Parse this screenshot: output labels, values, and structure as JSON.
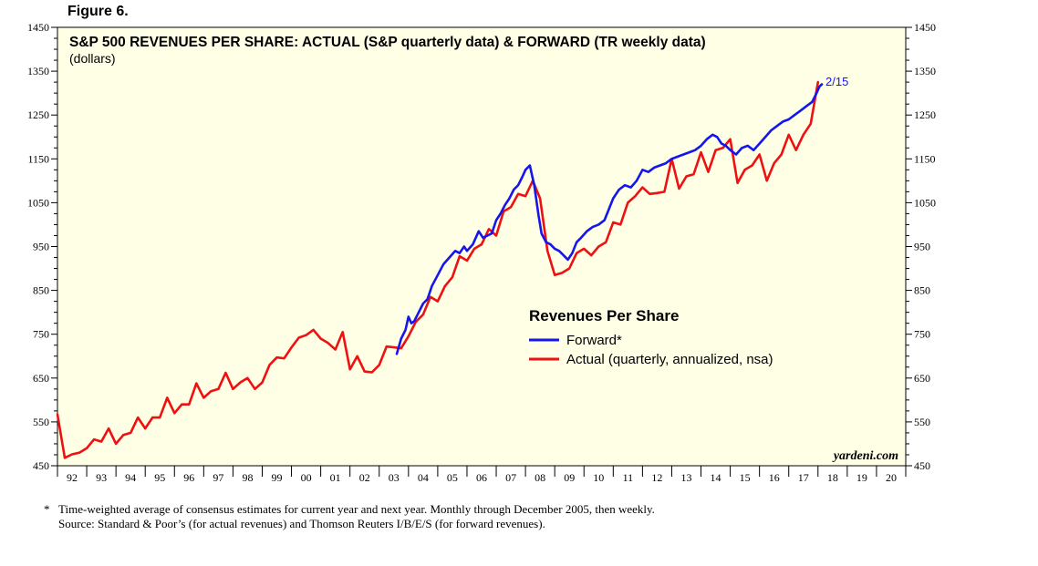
{
  "figure_label": "Figure 6.",
  "watermark": "yardeni.com",
  "footnote": {
    "line1": "*   Time-weighted average of consensus estimates for current year and next year. Monthly through December 2005, then weekly.",
    "line2": "Source: Standard & Poor’s (for actual revenues) and Thomson Reuters I/B/E/S (for forward revenues)."
  },
  "chart_data": {
    "type": "line",
    "title": "S&P 500 REVENUES PER SHARE: ACTUAL (S&P quarterly data) & FORWARD (TR weekly data)",
    "subtitle": "(dollars)",
    "legend_title": "Revenues Per Share",
    "ylim": [
      450,
      1450
    ],
    "y_ticks": [
      450,
      550,
      650,
      750,
      850,
      950,
      1050,
      1150,
      1250,
      1350,
      1450
    ],
    "x_range": [
      1992,
      2021
    ],
    "x_tick_labels": [
      "92",
      "93",
      "94",
      "95",
      "96",
      "97",
      "98",
      "99",
      "00",
      "01",
      "02",
      "03",
      "04",
      "05",
      "06",
      "07",
      "08",
      "09",
      "10",
      "11",
      "12",
      "13",
      "14",
      "15",
      "16",
      "17",
      "18",
      "19",
      "20"
    ],
    "grid": false,
    "legend_position": "center-right",
    "end_annotation": "2/15",
    "colors": {
      "background": "#ffffe6",
      "forward": "#1515ee",
      "actual": "#ee1111"
    },
    "series": [
      {
        "name": "Actual (quarterly, annualized, nsa)",
        "x": [
          1992.0,
          1992.25,
          1992.5,
          1992.75,
          1993.0,
          1993.25,
          1993.5,
          1993.75,
          1994.0,
          1994.25,
          1994.5,
          1994.75,
          1995.0,
          1995.25,
          1995.5,
          1995.75,
          1996.0,
          1996.25,
          1996.5,
          1996.75,
          1997.0,
          1997.25,
          1997.5,
          1997.75,
          1998.0,
          1998.25,
          1998.5,
          1998.75,
          1999.0,
          1999.25,
          1999.5,
          1999.75,
          2000.0,
          2000.25,
          2000.5,
          2000.75,
          2001.0,
          2001.25,
          2001.5,
          2001.75,
          2002.0,
          2002.25,
          2002.5,
          2002.75,
          2003.0,
          2003.25,
          2003.5,
          2003.75,
          2004.0,
          2004.25,
          2004.5,
          2004.75,
          2005.0,
          2005.25,
          2005.5,
          2005.75,
          2006.0,
          2006.25,
          2006.5,
          2006.75,
          2007.0,
          2007.25,
          2007.5,
          2007.75,
          2008.0,
          2008.25,
          2008.5,
          2008.75,
          2009.0,
          2009.25,
          2009.5,
          2009.75,
          2010.0,
          2010.25,
          2010.5,
          2010.75,
          2011.0,
          2011.25,
          2011.5,
          2011.75,
          2012.0,
          2012.25,
          2012.5,
          2012.75,
          2013.0,
          2013.25,
          2013.5,
          2013.75,
          2014.0,
          2014.25,
          2014.5,
          2014.75,
          2015.0,
          2015.25,
          2015.5,
          2015.75,
          2016.0,
          2016.25,
          2016.5,
          2016.75,
          2017.0,
          2017.25,
          2017.5,
          2017.75,
          2018.0
        ],
        "values": [
          567,
          468,
          476,
          480,
          490,
          510,
          505,
          535,
          500,
          520,
          525,
          560,
          535,
          560,
          560,
          605,
          570,
          590,
          590,
          638,
          605,
          620,
          625,
          662,
          625,
          640,
          650,
          625,
          640,
          680,
          697,
          695,
          720,
          742,
          748,
          760,
          740,
          730,
          715,
          755,
          670,
          700,
          665,
          663,
          680,
          722,
          720,
          718,
          745,
          778,
          795,
          835,
          825,
          860,
          880,
          928,
          918,
          945,
          955,
          990,
          975,
          1030,
          1040,
          1070,
          1065,
          1100,
          1060,
          940,
          885,
          890,
          900,
          935,
          945,
          930,
          950,
          960,
          1005,
          1000,
          1050,
          1065,
          1085,
          1070,
          1072,
          1075,
          1150,
          1082,
          1110,
          1115,
          1165,
          1120,
          1170,
          1175,
          1195,
          1095,
          1125,
          1135,
          1160,
          1100,
          1140,
          1160,
          1205,
          1170,
          1205,
          1230,
          1325
        ]
      },
      {
        "name": "Forward*",
        "x": [
          2003.6,
          2003.75,
          2003.9,
          2004.0,
          2004.1,
          2004.2,
          2004.35,
          2004.5,
          2004.65,
          2004.8,
          2005.0,
          2005.2,
          2005.4,
          2005.6,
          2005.75,
          2005.9,
          2006.0,
          2006.2,
          2006.4,
          2006.55,
          2006.7,
          2006.85,
          2007.0,
          2007.15,
          2007.3,
          2007.45,
          2007.6,
          2007.75,
          2007.9,
          2008.0,
          2008.15,
          2008.3,
          2008.45,
          2008.55,
          2008.7,
          2008.85,
          2009.0,
          2009.15,
          2009.3,
          2009.45,
          2009.6,
          2009.75,
          2009.9,
          2010.1,
          2010.3,
          2010.5,
          2010.7,
          2010.85,
          2011.0,
          2011.2,
          2011.4,
          2011.6,
          2011.8,
          2012.0,
          2012.2,
          2012.4,
          2012.6,
          2012.8,
          2013.0,
          2013.2,
          2013.4,
          2013.6,
          2013.8,
          2014.0,
          2014.2,
          2014.4,
          2014.55,
          2014.7,
          2014.85,
          2015.0,
          2015.2,
          2015.4,
          2015.6,
          2015.8,
          2016.0,
          2016.2,
          2016.4,
          2016.6,
          2016.8,
          2017.0,
          2017.2,
          2017.4,
          2017.6,
          2017.8,
          2017.95,
          2018.05,
          2018.13
        ],
        "values": [
          705,
          740,
          760,
          790,
          775,
          780,
          800,
          820,
          830,
          860,
          885,
          910,
          925,
          940,
          935,
          950,
          940,
          955,
          985,
          970,
          975,
          980,
          1010,
          1025,
          1045,
          1060,
          1080,
          1090,
          1110,
          1125,
          1135,
          1090,
          1020,
          980,
          960,
          955,
          945,
          940,
          930,
          920,
          935,
          960,
          970,
          985,
          995,
          1000,
          1010,
          1035,
          1060,
          1080,
          1090,
          1085,
          1100,
          1125,
          1120,
          1130,
          1135,
          1140,
          1150,
          1155,
          1160,
          1165,
          1170,
          1180,
          1195,
          1205,
          1200,
          1185,
          1180,
          1170,
          1160,
          1175,
          1180,
          1170,
          1185,
          1200,
          1215,
          1225,
          1235,
          1240,
          1250,
          1260,
          1270,
          1280,
          1300,
          1315,
          1320
        ]
      }
    ]
  }
}
